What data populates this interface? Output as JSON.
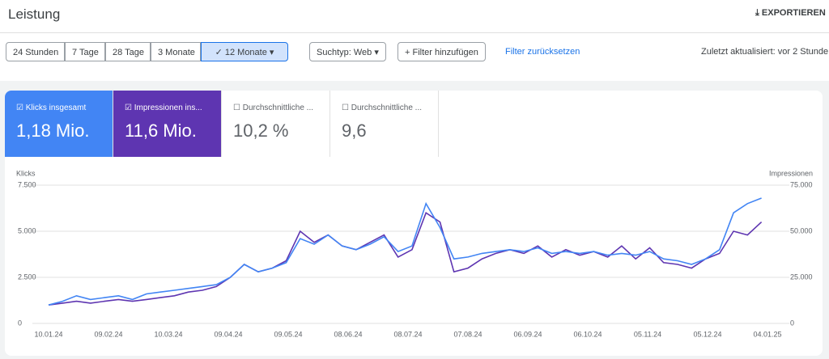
{
  "header": {
    "title": "Leistung",
    "export": "EXPORTIEREN"
  },
  "filters": {
    "ranges": [
      "24 Stunden",
      "7 Tage",
      "28 Tage",
      "3 Monate",
      "12 Monate"
    ],
    "search_type": "Suchtyp: Web",
    "add_filter": "Filter hinzufügen",
    "reset": "Filter zurücksetzen",
    "updated": "Zuletzt aktualisiert: vor 2 Stunde"
  },
  "metrics": [
    {
      "label": "Klicks insgesamt",
      "value": "1,18 Mio."
    },
    {
      "label": "Impressionen ins...",
      "value": "11,6 Mio."
    },
    {
      "label": "Durchschnittliche ...",
      "value": "10,2 %"
    },
    {
      "label": "Durchschnittliche ...",
      "value": "9,6"
    }
  ],
  "chart_data": {
    "type": "line",
    "y_label": "Klicks",
    "y2_label": "Impressionen",
    "x": [
      "10.01.24",
      "17.01.24",
      "24.01.24",
      "31.01.24",
      "07.02.24",
      "14.02.24",
      "21.02.24",
      "28.02.24",
      "06.03.24",
      "13.03.24",
      "20.03.24",
      "27.03.24",
      "03.04.24",
      "10.04.24",
      "17.04.24",
      "24.04.24",
      "01.05.24",
      "08.05.24",
      "15.05.24",
      "22.05.24",
      "29.05.24",
      "05.06.24",
      "12.06.24",
      "19.06.24",
      "26.06.24",
      "03.07.24",
      "10.07.24",
      "17.07.24",
      "24.07.24",
      "31.07.24",
      "07.08.24",
      "14.08.24",
      "21.08.24",
      "28.08.24",
      "04.09.24",
      "11.09.24",
      "18.09.24",
      "25.09.24",
      "02.10.24",
      "09.10.24",
      "16.10.24",
      "23.10.24",
      "30.10.24",
      "06.11.24",
      "13.11.24",
      "20.11.24",
      "27.11.24",
      "04.12.24",
      "11.12.24",
      "18.12.24",
      "25.12.24",
      "01.01.25"
    ],
    "series": [
      {
        "name": "Klicks",
        "color": "#4285f4",
        "values": [
          1000,
          1200,
          1500,
          1300,
          1400,
          1500,
          1300,
          1600,
          1700,
          1800,
          1900,
          2000,
          2100,
          2500,
          3200,
          2800,
          3000,
          3300,
          4600,
          4300,
          4800,
          4200,
          4000,
          4300,
          4700,
          3900,
          4200,
          6500,
          5200,
          3500,
          3600,
          3800,
          3900,
          4000,
          3900,
          4100,
          3800,
          3900,
          3800,
          3900,
          3700,
          3800,
          3700,
          3900,
          3500,
          3400,
          3200,
          3500,
          4000,
          6000,
          6500,
          6800
        ]
      },
      {
        "name": "Impressionen",
        "color": "#5e35b1",
        "axis": "y2",
        "values": [
          10000,
          11000,
          12000,
          11000,
          12000,
          13000,
          12000,
          13000,
          14000,
          15000,
          17000,
          18000,
          20000,
          25000,
          32000,
          28000,
          30000,
          34000,
          50000,
          44000,
          48000,
          42000,
          40000,
          44000,
          48000,
          36000,
          40000,
          60000,
          55000,
          28000,
          30000,
          35000,
          38000,
          40000,
          38000,
          42000,
          36000,
          40000,
          37000,
          39000,
          36000,
          42000,
          35000,
          41000,
          33000,
          32000,
          30000,
          35000,
          38000,
          50000,
          48000,
          55000
        ]
      }
    ],
    "ylim": [
      0,
      7500
    ],
    "yticks": [
      0,
      {
        "value": 2500,
        "label": "2.500"
      },
      {
        "value": 5000,
        "label": "5.000"
      },
      {
        "value": 7500,
        "label": "7.500"
      }
    ],
    "y2lim": [
      0,
      75000
    ],
    "y2ticks": [
      0,
      {
        "value": 25000,
        "label": "25.000"
      },
      {
        "value": 50000,
        "label": "50.000"
      },
      {
        "value": 75000,
        "label": "75.000"
      }
    ],
    "xticks": [
      "10.01.24",
      "09.02.24",
      "10.03.24",
      "09.04.24",
      "09.05.24",
      "08.06.24",
      "08.07.24",
      "07.08.24",
      "06.09.24",
      "06.10.24",
      "05.11.24",
      "05.12.24",
      "04.01.25"
    ],
    "grid": true
  }
}
